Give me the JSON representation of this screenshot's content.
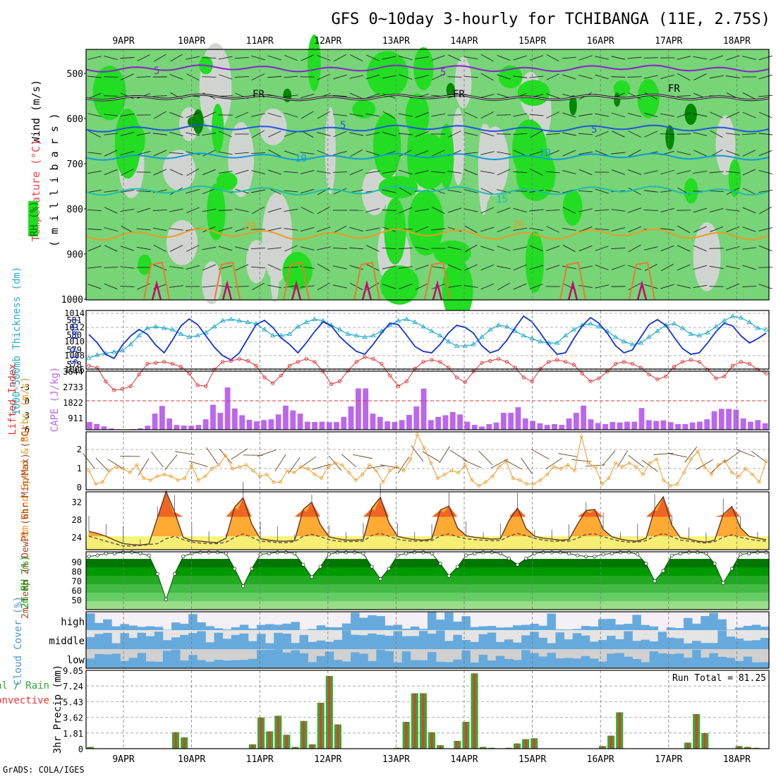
{
  "title": "GFS 0~10day 3-hourly for TCHIBANGA (11E, 2.75S)",
  "footer": "GrADS: COLA/IGES",
  "date_labels": [
    "9APR",
    "10APR",
    "11APR",
    "12APR",
    "13APR",
    "14APR",
    "15APR",
    "16APR",
    "17APR",
    "18APR"
  ],
  "colors": {
    "rh_light": "#d0d4d0",
    "rh_mid": "#77d477",
    "rh_high": "#22dd22",
    "rh_dark": "#008800",
    "wind5": "#8822cc",
    "wind_blue": "#2255dd",
    "temp10": "#1199dd",
    "temp15": "#22bbaa",
    "temp20": "#ee9922",
    "temp_hot": "#ee7733",
    "magenta": "#cc0077",
    "slp": "#1133cc",
    "thick": "#22aacc",
    "li": "#dd3333",
    "cape": "#bb66ee",
    "wind10m": "#ee9922",
    "tmax": "#ee6622",
    "t2": "#ffaa33",
    "dew": "#555555",
    "rh2_dark": "#009900",
    "cloud": "#66aadd",
    "precip_total": "#33aa33",
    "precip_conv": "#ee3333"
  },
  "chart_data": [
    {
      "type": "heatmap",
      "name": "cross-section",
      "ylabel_var": "Wind (m/s)",
      "ylabel_temp": "Temperature (°C)",
      "ylabel_rh": "RH (%)",
      "ylabel_unit": "( m i l l i b a r s )",
      "y_ticks": [
        "500",
        "600",
        "700",
        "800",
        "900",
        "1000"
      ],
      "contour_labels": [
        "5",
        "5",
        "FR",
        "FR",
        "FR",
        "5",
        "5",
        "10",
        "10",
        "15",
        "20",
        "20"
      ]
    },
    {
      "type": "line",
      "name": "thickness-slp",
      "ylabel_left": "1000-500mb Thickness (dm)",
      "ylabel_right": "SLP (mb)",
      "left_ticks": [
        "581",
        "580",
        "579",
        "578"
      ],
      "right_ticks": [
        "1014",
        "1012",
        "1010",
        "1008",
        "1006"
      ],
      "series": [
        {
          "name": "SLP",
          "values": [
            1011.0,
            1009.8,
            1008.2,
            1007.6,
            1009.5,
            1010.8,
            1011.7,
            1011.0,
            1009.5,
            1008.4,
            1010.2,
            1012.2,
            1013.2,
            1012.4,
            1010.8,
            1009.2,
            1008.0,
            1007.4,
            1008.4,
            1010.4,
            1012.4,
            1013.0,
            1012.0,
            1010.5,
            1009.6,
            1008.4,
            1009.8,
            1011.4,
            1012.8,
            1012.2,
            1010.7,
            1009.6,
            1008.6,
            1008.2,
            1009.6,
            1011.2,
            1012.6,
            1012.4,
            1010.9,
            1009.3,
            1008.6,
            1008.4,
            1009.6,
            1011.2,
            1012.3,
            1012.0,
            1011.2,
            1009.4,
            1008.4,
            1008.8,
            1010.2,
            1012.0,
            1013.6,
            1012.8,
            1011.2,
            1009.5,
            1008.2,
            1008.4,
            1010.4,
            1012.2,
            1013.4,
            1012.6,
            1011.2,
            1009.4,
            1008.4,
            1008.8,
            1010.6,
            1012.4,
            1013.1,
            1012.3,
            1010.6,
            1009.0,
            1008.2,
            1008.4,
            1009.8,
            1011.4,
            1012.6,
            1012.2,
            1010.8,
            1009.8,
            1010.4,
            1011.2
          ]
        },
        {
          "name": "Thickness",
          "values": [
            578.4,
            578.6,
            578.7,
            578.8,
            578.9,
            579.3,
            579.9,
            580.4,
            580.5,
            580.4,
            580.3,
            580.0,
            579.8,
            579.9,
            580.1,
            580.5,
            580.9,
            581.0,
            580.9,
            580.8,
            580.7,
            580.3,
            579.9,
            579.9,
            580.0,
            580.5,
            580.8,
            581.0,
            580.9,
            580.6,
            580.3,
            580.0,
            579.9,
            579.8,
            579.9,
            580.2,
            580.6,
            580.9,
            581.0,
            580.8,
            580.5,
            580.2,
            579.9,
            579.5,
            579.2,
            579.2,
            579.3,
            579.8,
            580.3,
            580.6,
            580.5,
            580.2,
            579.9,
            579.7,
            579.5,
            579.4,
            579.4,
            579.9,
            580.3,
            580.6,
            580.7,
            580.5,
            580.2,
            579.8,
            579.5,
            579.3,
            579.4,
            579.8,
            580.2,
            580.6,
            580.7,
            580.4,
            580.0,
            579.9,
            580.1,
            580.5,
            580.9,
            581.2,
            581.1,
            580.8,
            580.4,
            580.3
          ]
        }
      ]
    },
    {
      "type": "bar",
      "name": "li-cape",
      "ylabel_left": "Lifted Index",
      "ylabel_right": "CAPE (J/kg)",
      "left_ticks": [
        "-3",
        "0",
        "3",
        "6"
      ],
      "right_ticks": [
        "3644",
        "2733",
        "1822",
        "911"
      ],
      "cape_values": [
        480,
        360,
        210,
        80,
        30,
        20,
        40,
        90,
        250,
        1000,
        1480,
        700,
        300,
        260,
        250,
        300,
        650,
        1550,
        1050,
        2630,
        1320,
        900,
        620,
        520,
        600,
        650,
        950,
        1500,
        1200,
        1000,
        500,
        480,
        500,
        470,
        480,
        800,
        1450,
        2570,
        2570,
        1000,
        800,
        520,
        480,
        600,
        920,
        1450,
        2560,
        600,
        800,
        900,
        1100,
        950,
        500,
        300,
        200,
        350,
        450,
        1050,
        1050,
        1400,
        700,
        550,
        400,
        300,
        350,
        300,
        700,
        1050,
        1500,
        650,
        420,
        350,
        480,
        450,
        500,
        500,
        1350,
        600,
        550,
        580,
        470,
        350,
        350,
        450,
        500,
        650,
        1150,
        1300,
        1300,
        1250,
        700,
        500,
        600,
        400
      ],
      "li_values": [
        -3.6,
        -3.4,
        -2.0,
        -1.1,
        -1.2,
        -1.5,
        -2.7,
        -3.8,
        -3.9,
        -4.0,
        -3.8,
        -3.5,
        -2.8,
        -1.6,
        -1.5,
        -3.2,
        -4.0,
        -4.1,
        -4.3,
        -4.1,
        -3.6,
        -2.4,
        -1.8,
        -2.6,
        -3.6,
        -4.0,
        -4.3,
        -4.0,
        -3.0,
        -1.7,
        -2.0,
        -3.1,
        -4.0,
        -4.5,
        -4.3,
        -3.8,
        -2.6,
        -1.5,
        -2.0,
        -3.3,
        -4.0,
        -4.2,
        -4.0,
        -3.4,
        -2.4,
        -1.9,
        -3.0,
        -3.9,
        -4.1,
        -4.3,
        -4.0,
        -3.4,
        -2.4,
        -2.0,
        -3.3,
        -4.0,
        -4.2,
        -4.0,
        -3.7,
        -2.8,
        -2.0,
        -2.3,
        -3.0,
        -3.8,
        -4.0,
        -3.8,
        -3.4,
        -2.7,
        -2.2,
        -2.5,
        -3.5,
        -4.0,
        -4.2,
        -4.0,
        -3.2,
        -2.3,
        -2.5,
        -3.6,
        -4.0,
        -3.8,
        -3.2,
        -2.8
      ]
    },
    {
      "type": "line",
      "name": "wind10m",
      "ylabel": "10m Wind Speed & Barbs (m/s)",
      "y_ticks": [
        "2",
        "1",
        "0"
      ],
      "values": [
        1.0,
        0.3,
        0.4,
        1.0,
        1.2,
        1.1,
        0.9,
        1.3,
        0.6,
        0.5,
        0.7,
        0.8,
        0.7,
        0.5,
        0.6,
        1.3,
        0.5,
        0.7,
        1.1,
        1.3,
        1.8,
        1.1,
        1.2,
        1.3,
        1.0,
        0.7,
        0.8,
        0.4,
        0.4,
        1.0,
        0.9,
        1.2,
        1.1,
        0.8,
        0.6,
        1.2,
        1.4,
        1.3,
        0.9,
        0.5,
        0.8,
        1.3,
        1.0,
        0.4,
        1.0,
        1.2,
        1.0,
        1.6,
        2.9,
        2.2,
        1.4,
        0.6,
        0.8,
        1.0,
        0.9,
        1.3,
        0.5,
        0.2,
        0.4,
        0.7,
        1.2,
        1.5,
        0.6,
        0.5,
        0.3,
        0.3,
        0.5,
        0.8,
        1.2,
        1.1,
        1.3,
        1.0,
        2.8,
        1.4,
        1.2,
        0.3,
        0.6,
        1.4,
        1.2,
        1.4,
        1.2,
        0.8,
        1.4,
        1.6,
        0.5,
        0.2,
        0.3,
        0.9,
        1.6,
        2.0,
        1.2,
        0.8,
        1.3,
        1.5,
        0.9,
        0.7,
        1.1,
        0.8,
        0.4,
        1.5
      ]
    },
    {
      "type": "area",
      "name": "temp2m",
      "ylabel": "2m Temp 2m DewPt (6hr Min/Max) (°C)",
      "y_ticks": [
        "32",
        "28",
        "24"
      ],
      "temp": [
        25.0,
        24.6,
        24.0,
        23.2,
        22.5,
        22.3,
        22.2,
        22.4,
        27.8,
        33.2,
        29.0,
        23.8,
        23.1,
        23.0,
        22.8,
        22.7,
        23.6,
        30.0,
        31.9,
        26.5,
        23.5,
        23.2,
        23.0,
        23.0,
        23.1,
        29.5,
        31.0,
        26.4,
        23.9,
        23.5,
        23.2,
        23.2,
        23.3,
        29.8,
        32.0,
        26.8,
        24.0,
        23.6,
        23.3,
        23.2,
        23.4,
        29.4,
        30.2,
        25.7,
        24.1,
        23.8,
        23.6,
        23.4,
        23.5,
        27.2,
        29.8,
        25.6,
        24.0,
        23.6,
        23.4,
        23.2,
        23.3,
        26.5,
        29.3,
        29.5,
        25.4,
        23.9,
        23.4,
        23.1,
        23.0,
        23.6,
        29.6,
        32.1,
        26.3,
        23.7,
        23.4,
        23.0,
        22.8,
        23.2,
        28.5,
        30.1,
        25.8,
        24.0,
        23.6,
        23.3
      ],
      "dew": [
        24.0,
        23.5,
        23.0,
        22.5,
        22.0,
        22.0,
        22.1,
        22.3,
        22.5,
        23.5,
        24.0,
        23.3,
        22.8,
        22.6,
        22.5,
        22.5,
        22.8,
        23.8,
        24.5,
        23.8,
        23.0,
        22.9,
        22.7,
        22.7,
        22.9,
        24.0,
        24.4,
        23.9,
        23.3,
        23.0,
        22.9,
        22.9,
        23.0,
        24.2,
        24.6,
        24.0,
        23.4,
        23.1,
        23.0,
        23.0,
        23.1,
        24.1,
        24.5,
        23.9,
        23.5,
        23.3,
        23.2,
        23.1,
        23.1,
        24.0,
        24.6,
        24.1,
        23.6,
        23.2,
        23.0,
        23.0,
        23.0,
        23.6,
        24.4,
        24.5,
        23.9,
        23.4,
        23.0,
        22.8,
        22.8,
        23.1,
        24.0,
        24.6,
        23.9,
        23.2,
        23.0,
        22.8,
        22.6,
        22.9,
        23.8,
        24.3,
        23.8,
        23.4,
        23.1,
        23.0
      ]
    },
    {
      "type": "area",
      "name": "rh2m",
      "ylabel": "2m RH (%)",
      "y_ticks": [
        "90",
        "80",
        "70",
        "60",
        "50"
      ],
      "values": [
        92,
        93,
        95,
        95,
        96,
        96,
        95,
        93,
        75,
        50,
        75,
        92,
        95,
        96,
        96,
        96,
        95,
        80,
        63,
        80,
        94,
        95,
        96,
        96,
        95,
        84,
        72,
        82,
        94,
        96,
        96,
        96,
        95,
        82,
        70,
        80,
        93,
        95,
        96,
        96,
        95,
        85,
        73,
        82,
        93,
        95,
        96,
        96,
        95,
        90,
        84,
        90,
        95,
        96,
        96,
        96,
        95,
        93,
        92,
        92,
        94,
        95,
        96,
        96,
        94,
        85,
        68,
        78,
        93,
        95,
        96,
        96,
        95,
        85,
        66,
        80,
        94,
        95,
        96,
        96
      ]
    },
    {
      "type": "bar",
      "name": "cloud-cover",
      "ylabel": "Cloud Cover (%)",
      "levels": [
        "high",
        "middle",
        "low"
      ]
    },
    {
      "type": "bar",
      "name": "precip",
      "ylabel": "3hr Precip (mm)",
      "ylabel_left_1": "Total / Rain",
      "ylabel_left_2": "Convective",
      "y_ticks": [
        "9.05",
        "7.24",
        "5.43",
        "3.62",
        "1.81",
        "0"
      ],
      "run_total_label": "Run Total = 81.25",
      "values": [
        0.2,
        0,
        0,
        0,
        0,
        0,
        0,
        0,
        0,
        0,
        1.9,
        1.3,
        0,
        0,
        0,
        0,
        0,
        0,
        0,
        0.5,
        3.6,
        2.0,
        3.8,
        1.6,
        0.2,
        3.2,
        0.5,
        5.3,
        8.4,
        2.8,
        0,
        0,
        0,
        0,
        0,
        0,
        0.1,
        3.1,
        6.4,
        6.4,
        1.9,
        0.4,
        0,
        0.9,
        3.1,
        8.7,
        0.2,
        0.1,
        0,
        0.1,
        0.6,
        1.1,
        1.2,
        0,
        0,
        0,
        0,
        0,
        0,
        0,
        0.3,
        1.5,
        4.2,
        0,
        0,
        0,
        0,
        0,
        0,
        0,
        0.7,
        4.0,
        1.8,
        0,
        0,
        0,
        0.3,
        0.2,
        0.1,
        0
      ]
    }
  ]
}
